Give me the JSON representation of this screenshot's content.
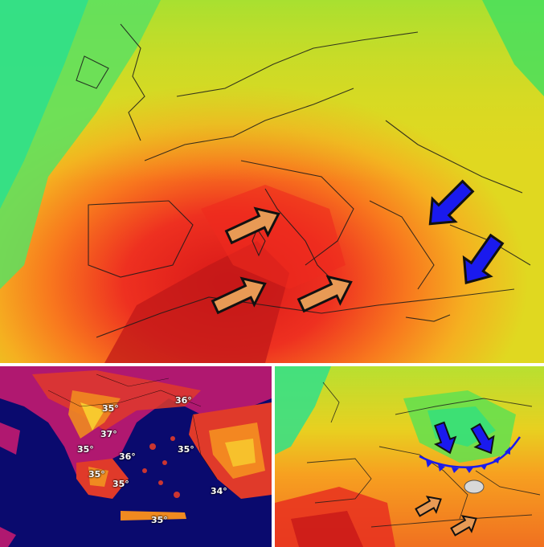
{
  "panels": {
    "top_map": {
      "description_icon": "europe-temperature-map",
      "arrows": [
        "warm-advection-arrow",
        "warm-advection-arrow",
        "warm-advection-arrow",
        "cold-advection-arrow",
        "cold-advection-arrow"
      ]
    },
    "bottom_left_map": {
      "temperature_labels": [
        "36°",
        "35°",
        "37°",
        "35°",
        "36°",
        "35°",
        "35°",
        "35°",
        "34°",
        "35°"
      ]
    },
    "bottom_right_map": {
      "description_icon": "europe-temperature-map-with-front"
    }
  },
  "colors": {
    "warm_arrow": "#e89a55",
    "cold_arrow": "#1a1aee",
    "front_line": "#1a1aee",
    "hot": "#e8201a",
    "warm": "#f5a020",
    "mild": "#c8e020",
    "cool": "#30e070",
    "sea_bl": "#0a0a6e"
  }
}
